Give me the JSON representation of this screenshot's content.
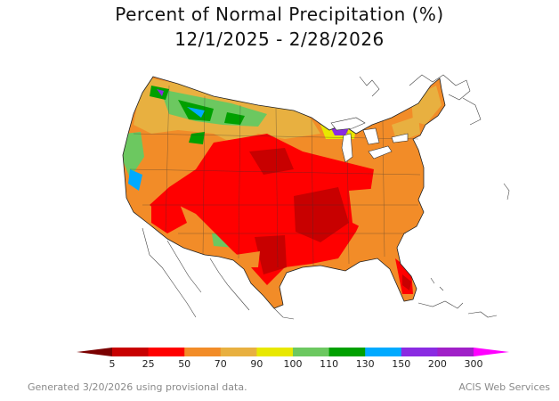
{
  "title": {
    "line1": "Percent of Normal Precipitation (%)",
    "line2": "12/1/2025 - 2/28/2026"
  },
  "legend": {
    "colors": [
      "#7a0000",
      "#c80000",
      "#ff0000",
      "#f28c28",
      "#e8b040",
      "#e8e800",
      "#6cc860",
      "#00a000",
      "#00aaff",
      "#8a2be2",
      "#a020c8",
      "#ff00ff"
    ],
    "tick_labels": [
      "5",
      "25",
      "50",
      "70",
      "90",
      "100",
      "110",
      "130",
      "150",
      "200",
      "300"
    ]
  },
  "footer": {
    "left": "Generated 3/20/2026 using provisional data.",
    "right": "ACIS Web Services"
  }
}
